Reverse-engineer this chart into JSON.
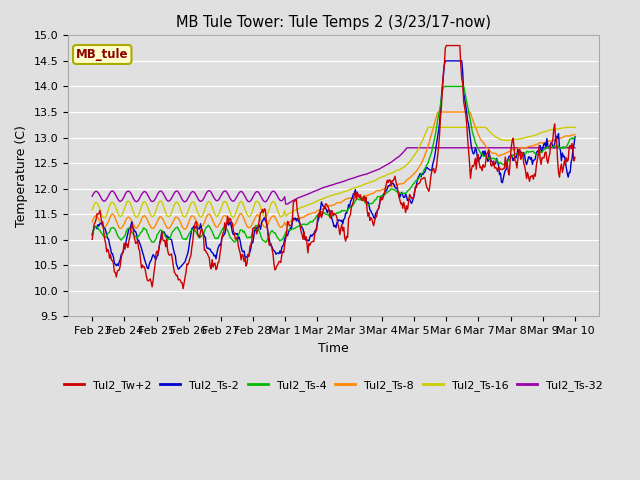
{
  "title": "MB Tule Tower: Tule Temps 2 (3/23/17-now)",
  "xlabel": "Time",
  "ylabel": "Temperature (C)",
  "ylim": [
    9.5,
    15.0
  ],
  "yticks": [
    9.5,
    10.0,
    10.5,
    11.0,
    11.5,
    12.0,
    12.5,
    13.0,
    13.5,
    14.0,
    14.5,
    15.0
  ],
  "bg_color": "#e0e0e0",
  "grid_color": "#ffffff",
  "series_colors": {
    "Tul2_Tw+2": "#cc0000",
    "Tul2_Ts-2": "#0000cc",
    "Tul2_Ts-4": "#00bb00",
    "Tul2_Ts-8": "#ff8800",
    "Tul2_Ts-16": "#cccc00",
    "Tul2_Ts-32": "#9900aa"
  },
  "station_label": "MB_tule",
  "station_label_color": "#8b0000",
  "station_box_facecolor": "#ffffcc",
  "station_box_edgecolor": "#aaaa00",
  "x_tick_labels": [
    "Feb 23",
    "Feb 24",
    "Feb 25",
    "Feb 26",
    "Feb 27",
    "Feb 28",
    "Mar 1",
    "Mar 2",
    "Mar 3",
    "Mar 4",
    "Mar 5",
    "Mar 6",
    "Mar 7",
    "Mar 8",
    "Mar 9",
    "Mar 10"
  ],
  "n_points": 500
}
